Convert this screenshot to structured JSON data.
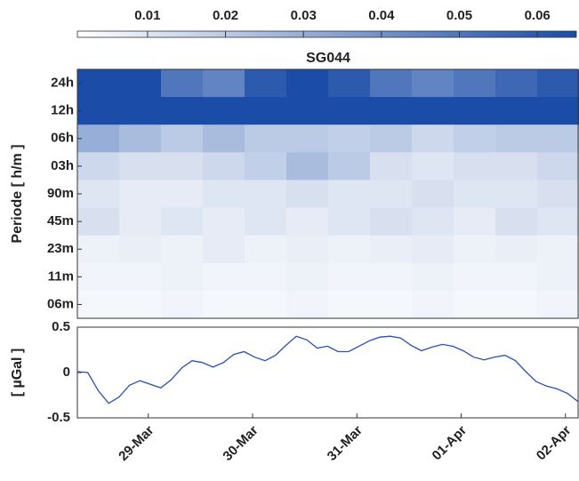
{
  "chart_data": [
    {
      "type": "heatmap",
      "title": "SG044",
      "ylabel": "Periode [ h/m ]",
      "rows": [
        "24h",
        "12h",
        "06h",
        "03h",
        "90m",
        "45m",
        "23m",
        "11m",
        "06m"
      ],
      "xlim": [
        0.32,
        5.13
      ],
      "values": [
        [
          0.065,
          0.065,
          0.05,
          0.045,
          0.06,
          0.065,
          0.06,
          0.05,
          0.045,
          0.05,
          0.055,
          0.06
        ],
        [
          0.065,
          0.065,
          0.065,
          0.065,
          0.065,
          0.065,
          0.065,
          0.065,
          0.065,
          0.065,
          0.065,
          0.065
        ],
        [
          0.03,
          0.025,
          0.02,
          0.025,
          0.02,
          0.02,
          0.018,
          0.02,
          0.015,
          0.018,
          0.02,
          0.02
        ],
        [
          0.015,
          0.012,
          0.012,
          0.015,
          0.018,
          0.025,
          0.02,
          0.012,
          0.01,
          0.012,
          0.012,
          0.015
        ],
        [
          0.01,
          0.008,
          0.008,
          0.01,
          0.01,
          0.012,
          0.01,
          0.01,
          0.012,
          0.01,
          0.01,
          0.012
        ],
        [
          0.012,
          0.008,
          0.01,
          0.008,
          0.01,
          0.008,
          0.01,
          0.012,
          0.01,
          0.008,
          0.012,
          0.01
        ],
        [
          0.006,
          0.007,
          0.006,
          0.008,
          0.006,
          0.007,
          0.006,
          0.007,
          0.008,
          0.006,
          0.007,
          0.006
        ],
        [
          0.005,
          0.005,
          0.006,
          0.005,
          0.005,
          0.006,
          0.005,
          0.005,
          0.006,
          0.005,
          0.005,
          0.006
        ],
        [
          0.004,
          0.004,
          0.005,
          0.004,
          0.004,
          0.005,
          0.004,
          0.004,
          0.005,
          0.004,
          0.004,
          0.005
        ]
      ],
      "colormap": [
        "#ffffff",
        "#1a4ca8"
      ],
      "clim": [
        0.001,
        0.065
      ],
      "cticks": [
        0.01,
        0.02,
        0.03,
        0.04,
        0.05,
        0.06
      ]
    },
    {
      "type": "line",
      "ylabel": "[ µGal ]",
      "x": [
        0.32,
        0.42,
        0.52,
        0.62,
        0.72,
        0.82,
        0.92,
        1.02,
        1.12,
        1.22,
        1.32,
        1.42,
        1.52,
        1.62,
        1.72,
        1.82,
        1.92,
        2.02,
        2.12,
        2.22,
        2.32,
        2.42,
        2.52,
        2.62,
        2.72,
        2.82,
        2.92,
        3.02,
        3.12,
        3.22,
        3.32,
        3.42,
        3.52,
        3.62,
        3.72,
        3.82,
        3.92,
        4.02,
        4.12,
        4.22,
        4.32,
        4.42,
        4.52,
        4.62,
        4.72,
        4.82,
        4.92,
        5.02,
        5.12
      ],
      "series": [
        {
          "color": "#2a4fb5",
          "values": [
            0.01,
            0.0,
            -0.2,
            -0.34,
            -0.27,
            -0.14,
            -0.09,
            -0.13,
            -0.17,
            -0.08,
            0.05,
            0.13,
            0.11,
            0.06,
            0.11,
            0.2,
            0.23,
            0.17,
            0.13,
            0.19,
            0.3,
            0.4,
            0.36,
            0.27,
            0.29,
            0.23,
            0.23,
            0.29,
            0.35,
            0.39,
            0.4,
            0.38,
            0.3,
            0.24,
            0.28,
            0.31,
            0.29,
            0.24,
            0.17,
            0.14,
            0.17,
            0.19,
            0.13,
            0.01,
            -0.1,
            -0.15,
            -0.18,
            -0.23,
            -0.32
          ]
        }
      ],
      "xlim": [
        0.32,
        5.13
      ],
      "xticks": [
        {
          "value": 1,
          "label": "29-Mar"
        },
        {
          "value": 2,
          "label": "30-Mar"
        },
        {
          "value": 3,
          "label": "31-Mar"
        },
        {
          "value": 4,
          "label": "01-Apr"
        },
        {
          "value": 5,
          "label": "02-Apr"
        }
      ],
      "ylim": [
        -0.5,
        0.5
      ],
      "yticks": [
        -0.5,
        0,
        0.5
      ]
    }
  ]
}
